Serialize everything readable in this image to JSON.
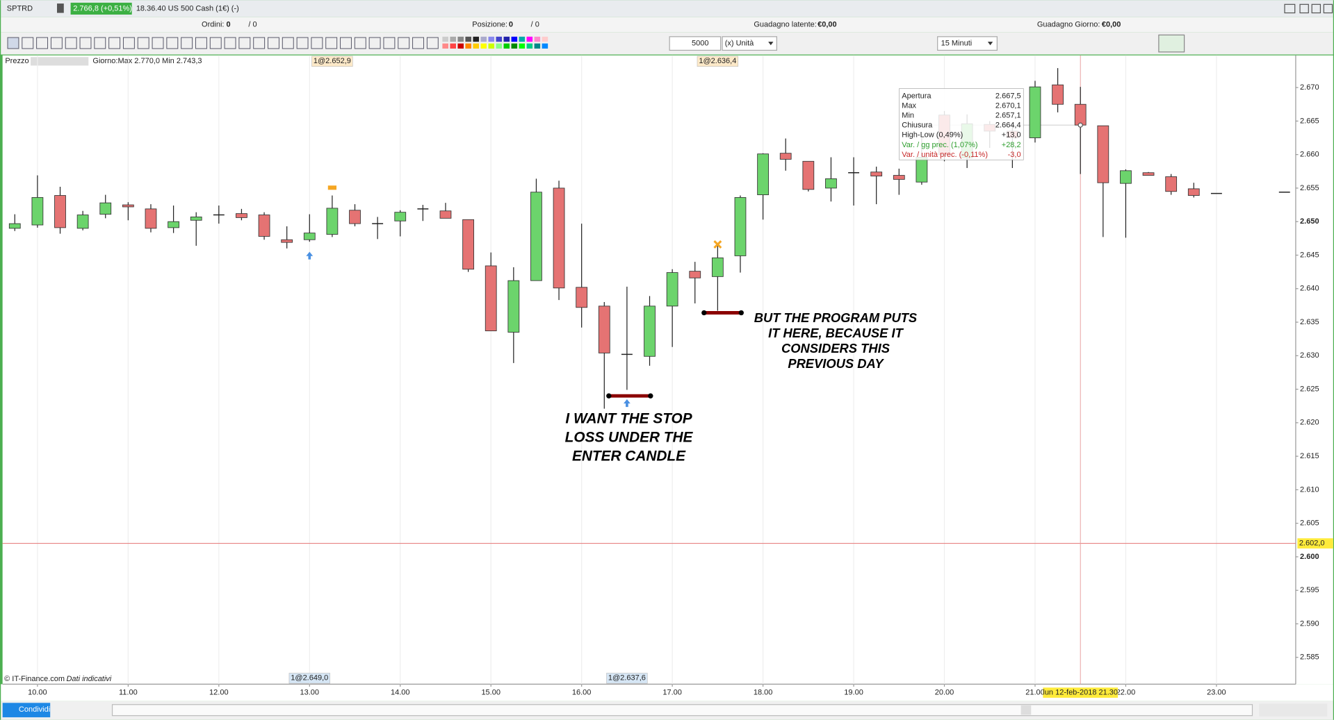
{
  "header": {
    "symbol": "SPTRD",
    "quote": "2.766,8 (+0,51%)",
    "info": "18.36.40 US 500 Cash (1€) (-)"
  },
  "status": {
    "orders_label": "Ordini:",
    "orders": "0",
    "orders_total": "/ 0",
    "position_label": "Posizione:",
    "position": "0",
    "position_total": "/ 0",
    "latent_label": "Guadagno latente:",
    "latent": "€0,00",
    "day_label": "Guadagno Giorno:",
    "day": "€0,00"
  },
  "toolbar": {
    "quantity": "5000",
    "unit": "(x) Unità",
    "timeframe": "15 Minuti"
  },
  "chart_header": {
    "label": "Prezzo",
    "day_range": "Giorno:Max 2.770,0 Min 2.743,3"
  },
  "chart_data": {
    "type": "candlestick",
    "x": [
      9.75,
      10,
      10.25,
      10.5,
      10.75,
      11,
      11.25,
      11.5,
      11.75,
      12,
      12.25,
      12.5,
      12.75,
      13,
      13.25,
      13.5,
      13.75,
      14,
      14.25,
      14.5,
      14.75,
      15,
      15.25,
      15.5,
      15.75,
      16,
      16.25,
      16.5,
      16.75,
      17,
      17.25,
      17.5,
      17.75,
      18,
      18.25,
      18.5,
      18.75,
      19,
      19.25,
      19.5,
      19.75,
      20,
      20.25,
      20.5,
      20.75,
      21,
      21.25,
      21.5,
      21.75,
      22,
      22.25,
      22.5,
      22.75,
      23,
      23.75
    ],
    "open": [
      2649.0,
      2649.5,
      2653.9,
      2649.0,
      2651.1,
      2652.5,
      2651.9,
      2649.1,
      2650.2,
      2651.0,
      2651.2,
      2651.0,
      2647.3,
      2647.3,
      2648.1,
      2651.7,
      2649.7,
      2650.1,
      2651.9,
      2651.6,
      2650.3,
      2643.4,
      2633.5,
      2641.2,
      2655.0,
      2640.2,
      2637.4,
      2630.2,
      2629.9,
      2637.4,
      2642.6,
      2641.8,
      2644.9,
      2654.0,
      2660.2,
      2659.0,
      2655.0,
      2657.3,
      2657.4,
      2656.9,
      2655.9,
      2665.9,
      2659.5,
      2664.5,
      2663.5,
      2662.5,
      2670.4,
      2667.5,
      2664.3,
      2655.7,
      2657.3,
      2656.7,
      2654.9,
      2654.2,
      2654.4
    ],
    "high": [
      2651.1,
      2656.9,
      2655.2,
      2651.6,
      2654.0,
      2652.9,
      2652.6,
      2652.4,
      2651.4,
      2652.4,
      2651.9,
      2651.4,
      2649.3,
      2651.1,
      2653.9,
      2652.6,
      2650.7,
      2651.7,
      2652.5,
      2652.8,
      2650.3,
      2645.4,
      2643.2,
      2656.4,
      2656.1,
      2649.7,
      2638.0,
      2640.3,
      2638.9,
      2642.9,
      2644.0,
      2646.5,
      2653.9,
      2660.2,
      2662.4,
      2659.0,
      2659.6,
      2659.6,
      2658.2,
      2657.9,
      2662.5,
      2666.5,
      2666.0,
      2665.0,
      2664.5,
      2671.0,
      2672.9,
      2670.1,
      2664.3,
      2657.8,
      2657.4,
      2657.1,
      2655.8,
      2654.2,
      2654.4
    ],
    "low": [
      2648.6,
      2649.1,
      2648.2,
      2648.7,
      2650.5,
      2650.2,
      2648.4,
      2648.3,
      2646.4,
      2649.7,
      2650.2,
      2647.3,
      2646.0,
      2647.0,
      2647.7,
      2649.3,
      2647.4,
      2647.8,
      2650.1,
      2650.5,
      2642.5,
      2633.7,
      2628.9,
      2641.2,
      2638.3,
      2634.2,
      2622.1,
      2624.9,
      2628.5,
      2631.3,
      2637.8,
      2636.7,
      2642.4,
      2650.3,
      2657.6,
      2654.5,
      2653.0,
      2652.4,
      2652.6,
      2654.0,
      2655.5,
      2659.0,
      2658.0,
      2661.0,
      2658.0,
      2661.8,
      2666.3,
      2657.1,
      2647.7,
      2647.6,
      2656.9,
      2654.0,
      2653.6,
      2654.2,
      2654.4
    ],
    "close": [
      2649.7,
      2653.6,
      2649.1,
      2651.0,
      2652.8,
      2652.2,
      2649.0,
      2650.0,
      2650.7,
      2651.0,
      2650.6,
      2647.8,
      2646.9,
      2648.3,
      2652.0,
      2649.7,
      2649.7,
      2651.4,
      2651.9,
      2650.5,
      2642.9,
      2633.7,
      2641.2,
      2654.4,
      2640.1,
      2637.2,
      2630.4,
      2630.2,
      2637.4,
      2642.4,
      2641.6,
      2644.6,
      2653.6,
      2660.1,
      2659.3,
      2654.8,
      2656.4,
      2657.3,
      2656.8,
      2656.3,
      2659.6,
      2660.0,
      2664.6,
      2663.5,
      2662.5,
      2670.1,
      2667.5,
      2664.4,
      2655.8,
      2657.6,
      2656.9,
      2654.5,
      2653.9,
      2654.2,
      2654.4
    ],
    "up_color": "#6cd46c",
    "down_color": "#e57373",
    "xlim": [
      9.615,
      23.874
    ],
    "xticks": [
      {
        "value": 10,
        "label": "10.00"
      },
      {
        "value": 11,
        "label": "11.00"
      },
      {
        "value": 12,
        "label": "12.00"
      },
      {
        "value": 13,
        "label": "13.00"
      },
      {
        "value": 14,
        "label": "14.00"
      },
      {
        "value": 15,
        "label": "15.00"
      },
      {
        "value": 16,
        "label": "16.00"
      },
      {
        "value": 17,
        "label": "17.00"
      },
      {
        "value": 18,
        "label": "18.00"
      },
      {
        "value": 19,
        "label": "19.00"
      },
      {
        "value": 20,
        "label": "20.00"
      },
      {
        "value": 21,
        "label": "21.00"
      },
      {
        "value": 22,
        "label": "22.00"
      },
      {
        "value": 23,
        "label": "23.00"
      }
    ],
    "ylim": [
      2581.0,
      2674.8
    ],
    "yticks": [
      {
        "value": 2585,
        "label": "2.585"
      },
      {
        "value": 2590,
        "label": "2.590"
      },
      {
        "value": 2595,
        "label": "2.595"
      },
      {
        "value": 2600,
        "label": "2.600",
        "bold": true
      },
      {
        "value": 2605,
        "label": "2.605"
      },
      {
        "value": 2610,
        "label": "2.610"
      },
      {
        "value": 2615,
        "label": "2.615"
      },
      {
        "value": 2620,
        "label": "2.620"
      },
      {
        "value": 2625,
        "label": "2.625"
      },
      {
        "value": 2630,
        "label": "2.630"
      },
      {
        "value": 2635,
        "label": "2.635"
      },
      {
        "value": 2640,
        "label": "2.640"
      },
      {
        "value": 2645,
        "label": "2.645"
      },
      {
        "value": 2650,
        "label": "2.650",
        "bold": true
      },
      {
        "value": 2655,
        "label": "2.655"
      },
      {
        "value": 2660,
        "label": "2.660"
      },
      {
        "value": 2665,
        "label": "2.665"
      },
      {
        "value": 2670,
        "label": "2.670"
      }
    ],
    "grid": true,
    "price_line": {
      "value": 2602.0,
      "label": "2.602,0"
    },
    "crosshair": {
      "x": 21.5,
      "value": 2664.4,
      "label": "lun 12-feb-2018 21.30"
    },
    "stop_lines": [
      {
        "value": 2624.0,
        "x": [
          16.3,
          16.76
        ]
      },
      {
        "value": 2636.4,
        "x": [
          17.35,
          17.76
        ]
      }
    ],
    "orders": [
      {
        "x": 13.25,
        "label": "1@2.652,9",
        "edge": "top"
      },
      {
        "x": 17.5,
        "label": "1@2.636,4",
        "edge": "top"
      },
      {
        "x": 13.0,
        "label": "1@2.649,0",
        "edge": "bottom"
      },
      {
        "x": 16.5,
        "label": "1@2.637,6",
        "edge": "bottom"
      }
    ],
    "annotations": [
      {
        "x": 16.52,
        "value": 2620.5,
        "lines": [
          "I WANT THE STOP",
          "LOSS UNDER THE",
          "ENTER CANDLE"
        ]
      },
      {
        "x": 18.8,
        "value": 2635.5,
        "lines": [
          "BUT THE PROGRAM PUTS",
          "IT HERE, BECAUSE IT",
          "CONSIDERS THIS",
          "PREVIOUS DAY"
        ]
      }
    ],
    "tooltip": [
      {
        "label": "Apertura",
        "value": "2.667,5",
        "color": "#222"
      },
      {
        "label": "Max",
        "value": "2.670,1",
        "color": "#222"
      },
      {
        "label": "Min",
        "value": "2.657,1",
        "color": "#222"
      },
      {
        "label": "Chiusura",
        "value": "2.664,4",
        "color": "#222"
      },
      {
        "label": "High-Low (0,49%)",
        "value": "+13,0",
        "color": "#222"
      },
      {
        "label": "Var. / gg prec. (1,07%)",
        "value": "+28,2",
        "color": "#2e9e2e"
      },
      {
        "label": "Var. / unità prec. (-0,11%)",
        "value": "-3,0",
        "color": "#c62828"
      }
    ]
  },
  "footer": {
    "copyright": "© IT-Finance.com",
    "note": "Dati indicativi",
    "share": "Condividi"
  }
}
